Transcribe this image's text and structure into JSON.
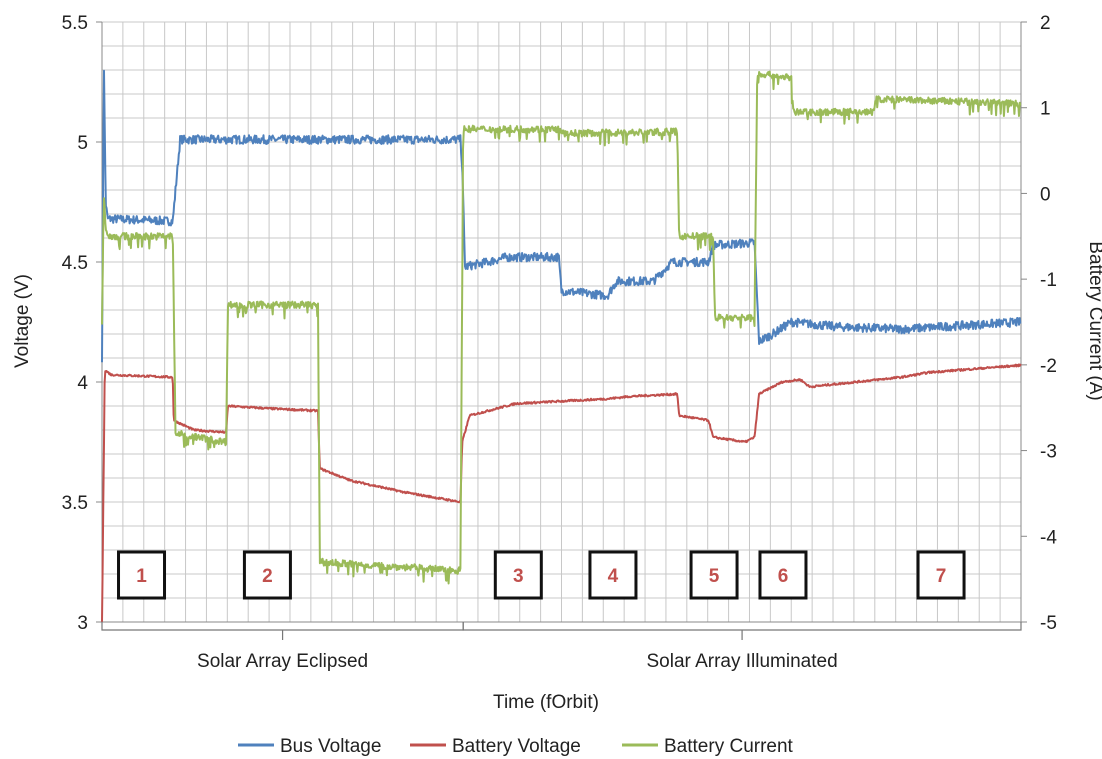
{
  "chart_data": {
    "type": "line",
    "xlabel": "Time (fOrbit)",
    "ylabel": "Voltage (V)",
    "y2label": "Battery Current (A)",
    "ylim": [
      3,
      5.5
    ],
    "y2lim": [
      -5,
      2
    ],
    "y_ticks": [
      "3",
      "3.5",
      "4",
      "4.5",
      "5",
      "5.5"
    ],
    "y2_ticks": [
      "-5",
      "-4",
      "-3",
      "-2",
      "-1",
      "0",
      "1",
      "2"
    ],
    "xlim": [
      0,
      1
    ],
    "grid": true,
    "legend_position": "bottom",
    "colors": {
      "bus": "#4f81bd",
      "battery_voltage": "#c0504d",
      "battery_current": "#9bbb59",
      "grid": "#c8c8c8"
    },
    "series": [
      {
        "name": "Bus Voltage",
        "axis": "left",
        "color": "#4f81bd",
        "noise": 0.018,
        "points": [
          [
            0,
            4.1
          ],
          [
            0.002,
            5.35
          ],
          [
            0.004,
            4.75
          ],
          [
            0.006,
            4.68
          ],
          [
            0.077,
            4.67
          ],
          [
            0.08,
            4.8
          ],
          [
            0.085,
            5.01
          ],
          [
            0.39,
            5.01
          ],
          [
            0.392,
            4.9
          ],
          [
            0.395,
            4.48
          ],
          [
            0.42,
            4.5
          ],
          [
            0.44,
            4.52
          ],
          [
            0.497,
            4.52
          ],
          [
            0.5,
            4.38
          ],
          [
            0.55,
            4.36
          ],
          [
            0.56,
            4.42
          ],
          [
            0.6,
            4.42
          ],
          [
            0.62,
            4.5
          ],
          [
            0.66,
            4.5
          ],
          [
            0.665,
            4.57
          ],
          [
            0.71,
            4.58
          ],
          [
            0.715,
            4.17
          ],
          [
            0.73,
            4.2
          ],
          [
            0.75,
            4.25
          ],
          [
            0.8,
            4.23
          ],
          [
            0.87,
            4.22
          ],
          [
            1,
            4.25
          ]
        ]
      },
      {
        "name": "Battery Voltage",
        "axis": "left",
        "color": "#c0504d",
        "noise": 0.004,
        "points": [
          [
            0,
            3.0
          ],
          [
            0.003,
            4.05
          ],
          [
            0.01,
            4.03
          ],
          [
            0.077,
            4.02
          ],
          [
            0.078,
            3.84
          ],
          [
            0.1,
            3.8
          ],
          [
            0.135,
            3.79
          ],
          [
            0.137,
            3.9
          ],
          [
            0.18,
            3.89
          ],
          [
            0.235,
            3.88
          ],
          [
            0.237,
            3.64
          ],
          [
            0.27,
            3.59
          ],
          [
            0.33,
            3.54
          ],
          [
            0.39,
            3.5
          ],
          [
            0.392,
            3.75
          ],
          [
            0.4,
            3.86
          ],
          [
            0.45,
            3.91
          ],
          [
            0.5,
            3.92
          ],
          [
            0.55,
            3.93
          ],
          [
            0.575,
            3.94
          ],
          [
            0.626,
            3.95
          ],
          [
            0.628,
            3.86
          ],
          [
            0.66,
            3.84
          ],
          [
            0.665,
            3.77
          ],
          [
            0.7,
            3.75
          ],
          [
            0.71,
            3.77
          ],
          [
            0.715,
            3.95
          ],
          [
            0.74,
            4.0
          ],
          [
            0.76,
            4.01
          ],
          [
            0.77,
            3.98
          ],
          [
            0.87,
            4.02
          ],
          [
            0.9,
            4.04
          ],
          [
            1,
            4.07
          ]
        ]
      },
      {
        "name": "Battery Current",
        "axis": "right",
        "color": "#9bbb59",
        "noise": 0.04,
        "points": [
          [
            0,
            -1.4
          ],
          [
            0.002,
            0.0
          ],
          [
            0.004,
            -0.4
          ],
          [
            0.007,
            -0.5
          ],
          [
            0.077,
            -0.5
          ],
          [
            0.08,
            -2.8
          ],
          [
            0.135,
            -2.9
          ],
          [
            0.137,
            -1.3
          ],
          [
            0.235,
            -1.3
          ],
          [
            0.237,
            -4.3
          ],
          [
            0.39,
            -4.4
          ],
          [
            0.393,
            0.75
          ],
          [
            0.497,
            0.75
          ],
          [
            0.5,
            0.7
          ],
          [
            0.626,
            0.72
          ],
          [
            0.628,
            -0.5
          ],
          [
            0.665,
            -0.5
          ],
          [
            0.667,
            -1.45
          ],
          [
            0.71,
            -1.45
          ],
          [
            0.713,
            1.4
          ],
          [
            0.75,
            1.35
          ],
          [
            0.752,
            0.95
          ],
          [
            0.84,
            0.95
          ],
          [
            0.842,
            1.1
          ],
          [
            1,
            1.05
          ]
        ]
      }
    ],
    "phases": [
      {
        "label": "1",
        "x": 0.043
      },
      {
        "label": "2",
        "x": 0.18
      },
      {
        "label": "3",
        "x": 0.453
      },
      {
        "label": "4",
        "x": 0.556
      },
      {
        "label": "5",
        "x": 0.666
      },
      {
        "label": "6",
        "x": 0.741
      },
      {
        "label": "7",
        "x": 0.913
      }
    ],
    "brackets": [
      {
        "label": "Solar Array Eclipsed",
        "from": 0,
        "to": 0.393
      },
      {
        "label": "Solar Array  Illuminated",
        "from": 0.393,
        "to": 1
      }
    ]
  }
}
